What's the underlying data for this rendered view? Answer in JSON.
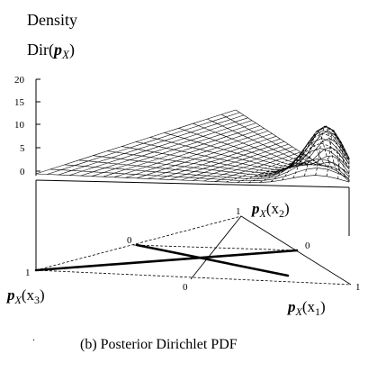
{
  "labels": {
    "density_word": "Density",
    "dir_prefix": "Dir(",
    "dir_var": "p",
    "dir_sub": "X",
    "dir_suffix": ")",
    "caption": "(b) Posterior Dirichlet PDF",
    "dot": "."
  },
  "z_ticks": [
    "20",
    "15",
    "10",
    "5",
    "0"
  ],
  "vertices": {
    "x1": {
      "var": "p",
      "sub": "X",
      "arg": "(x",
      "idx": "1",
      "close": ")"
    },
    "x2": {
      "var": "p",
      "sub": "X",
      "arg": "(x",
      "idx": "2",
      "close": ")"
    },
    "x3": {
      "var": "p",
      "sub": "X",
      "arg": "(x",
      "idx": "3",
      "close": ")"
    }
  },
  "corner_ticks": {
    "x1_one": "1",
    "x2_one": "1",
    "x3_one": "1",
    "left_zero": "0",
    "right_zero": "0",
    "bottom_zero": "0"
  }
}
